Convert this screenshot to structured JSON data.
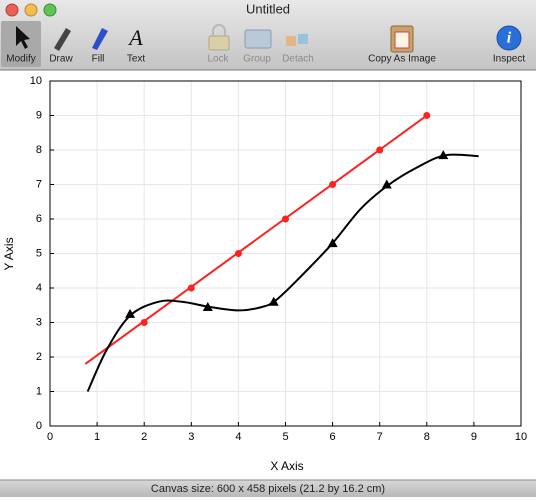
{
  "window": {
    "title": "Untitled"
  },
  "toolbar": [
    "Modify",
    "Draw",
    "Fill",
    "Text",
    "Lock",
    "Group",
    "Detach",
    "Copy As Image",
    "Inspect"
  ],
  "status": "Canvas size:  600 x 458 pixels (21.2 by 16.2 cm)",
  "chart_data": {
    "type": "line",
    "x_label": "X Axis",
    "y_label": "Y Axis",
    "xlim": [
      0,
      10
    ],
    "ylim": [
      0,
      10
    ],
    "xticks": [
      0,
      1,
      2,
      3,
      4,
      5,
      6,
      7,
      8,
      9,
      10
    ],
    "yticks": [
      0,
      1,
      2,
      3,
      4,
      5,
      6,
      7,
      8,
      9,
      10
    ],
    "grid": true,
    "series": [
      {
        "color": "#ff2020",
        "style": "line",
        "x": [
          0.75,
          8
        ],
        "values": [
          1.8,
          9
        ]
      },
      {
        "color": "#ff2020",
        "style": "circle",
        "x": [
          2,
          3,
          4,
          5,
          6,
          7,
          8
        ],
        "values": [
          3,
          4,
          5,
          6,
          7,
          8,
          9
        ]
      },
      {
        "color": "#000000",
        "style": "smooth",
        "x": [
          0.8,
          1.2,
          1.7,
          2.3,
          2.8,
          3.4,
          4,
          4.5,
          4.8,
          5.3,
          6,
          6.6,
          7.2,
          7.8,
          8.4,
          9.1
        ],
        "values": [
          1.0,
          2.2,
          3.2,
          3.6,
          3.6,
          3.45,
          3.35,
          3.45,
          3.65,
          4.3,
          5.3,
          6.3,
          7.0,
          7.5,
          7.85,
          7.82
        ]
      },
      {
        "color": "#000000",
        "style": "triangle",
        "x": [
          1.7,
          3.35,
          4.75,
          6,
          7.15,
          8.35
        ],
        "values": [
          3.25,
          3.45,
          3.6,
          5.3,
          7.0,
          7.85
        ]
      }
    ]
  }
}
